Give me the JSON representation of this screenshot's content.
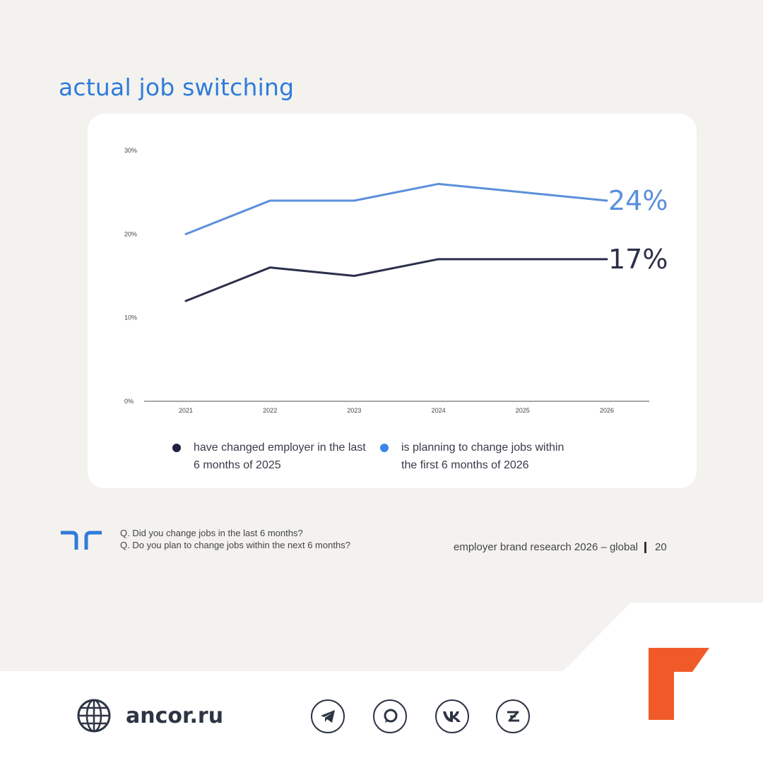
{
  "slide": {
    "title": "actual job switching"
  },
  "chart_data": {
    "type": "line",
    "x": [
      "2021",
      "2022",
      "2023",
      "2024",
      "2025",
      "2026"
    ],
    "ylim": [
      0,
      30
    ],
    "y_ticks": [
      "0%",
      "10%",
      "20%",
      "30%"
    ],
    "series": [
      {
        "name": "have changed employer in the last 6 months of 2025",
        "values": [
          12,
          16,
          15,
          17,
          17,
          17
        ],
        "end_label": "17%",
        "color": "#2b2f4a"
      },
      {
        "name": "is planning to change jobs within the first 6 months of 2026",
        "values": [
          20,
          24,
          24,
          26,
          25,
          24
        ],
        "end_label": "24%",
        "color": "#5b8fdc"
      }
    ],
    "grid": false,
    "legend": "bottom"
  },
  "footer": {
    "question_1": "Q. Did you change jobs in the last 6 months?",
    "question_2": "Q. Do you plan to change jobs within the next 6 months?",
    "source": "employer brand research 2026 – global",
    "page_number": "20"
  },
  "bottom_bar": {
    "site": "ancor.ru",
    "globe_icon": "globe-icon",
    "social_icons": [
      "telegram-icon",
      "chat-icon",
      "vk-icon",
      "zen-icon"
    ]
  },
  "colors": {
    "title_blue": "#2f7bd9",
    "accent_orange": "#f05a28",
    "randstad_blue": "#2f7bd9",
    "dark": "#2d3444"
  }
}
